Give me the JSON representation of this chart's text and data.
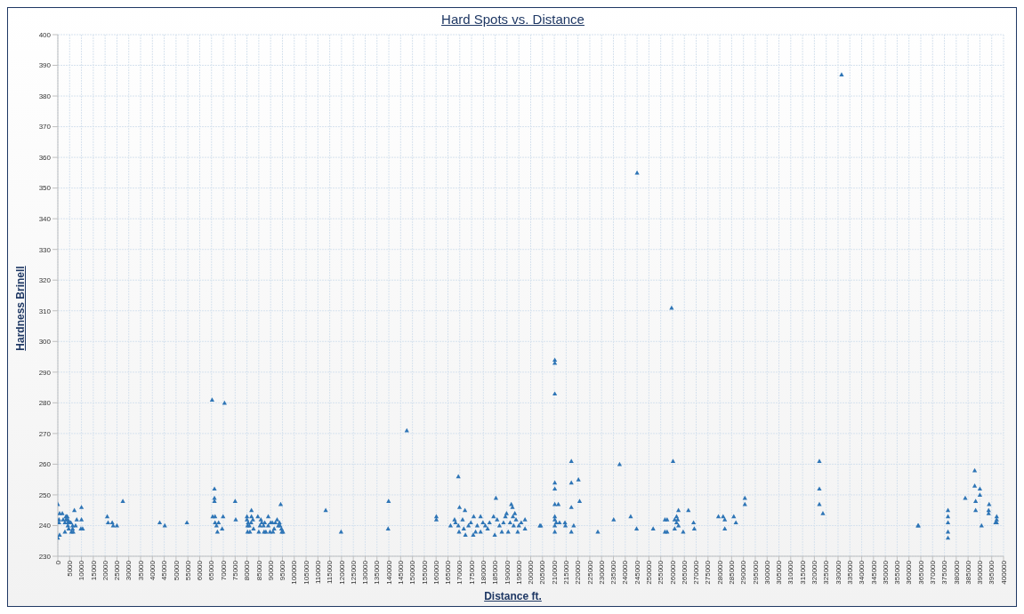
{
  "chart_data": {
    "type": "scatter",
    "title": "Hard Spots vs. Distance",
    "xlabel": "Distance ft.",
    "ylabel": "Hardness Brinell",
    "marker": "triangle",
    "grid": true,
    "legend": false,
    "xlim": [
      0,
      400000
    ],
    "ylim": [
      230,
      400
    ],
    "xticks": [
      0,
      5000,
      10000,
      15000,
      20000,
      25000,
      30000,
      35000,
      40000,
      45000,
      50000,
      55000,
      60000,
      65000,
      70000,
      75000,
      80000,
      85000,
      90000,
      95000,
      100000,
      105000,
      110000,
      115000,
      120000,
      125000,
      130000,
      135000,
      140000,
      145000,
      150000,
      155000,
      160000,
      165000,
      170000,
      175000,
      180000,
      185000,
      190000,
      195000,
      200000,
      205000,
      210000,
      215000,
      220000,
      225000,
      230000,
      235000,
      240000,
      245000,
      250000,
      255000,
      260000,
      265000,
      270000,
      275000,
      280000,
      285000,
      290000,
      295000,
      300000,
      305000,
      310000,
      315000,
      320000,
      325000,
      330000,
      335000,
      340000,
      345000,
      350000,
      355000,
      360000,
      365000,
      370000,
      375000,
      380000,
      385000,
      390000,
      395000,
      400000
    ],
    "yticks": [
      230,
      240,
      250,
      260,
      270,
      280,
      290,
      300,
      310,
      320,
      330,
      340,
      350,
      360,
      370,
      380,
      390,
      400
    ],
    "series": [
      {
        "color": "#2e75b6",
        "x": [
          0,
          500,
          500,
          0,
          750,
          750,
          1900,
          2250,
          3000,
          3000,
          3400,
          3750,
          4000,
          3500,
          4250,
          4250,
          4600,
          5000,
          5500,
          4250,
          4600,
          5750,
          6250,
          6500,
          6250,
          7000,
          7500,
          8000,
          10000,
          10000,
          9750,
          10500,
          20900,
          21250,
          23000,
          23400,
          25000,
          27500,
          43100,
          45250,
          54600,
          65250,
          70500,
          65500,
          66500,
          66250,
          66250,
          66250,
          66500,
          67100,
          67500,
          68000,
          69900,
          69500,
          75000,
          75250,
          80000,
          80000,
          80500,
          80250,
          80250,
          81250,
          81000,
          81900,
          81900,
          81750,
          82500,
          82750,
          84600,
          85000,
          85500,
          85900,
          86250,
          87000,
          87500,
          87250,
          88000,
          89000,
          89000,
          89750,
          90000,
          90750,
          91000,
          91500,
          92000,
          92750,
          93250,
          93750,
          94250,
          94600,
          94750,
          95250,
          94000,
          113300,
          119800,
          139900,
          139700,
          147600,
          160100,
          160100,
          166100,
          167800,
          168200,
          169400,
          169900,
          172200,
          169400,
          169700,
          171200,
          171700,
          172400,
          173700,
          174700,
          175900,
          175700,
          176700,
          177400,
          178800,
          178800,
          179800,
          180800,
          181800,
          182600,
          184300,
          184800,
          185300,
          185800,
          186800,
          187800,
          188500,
          189300,
          189800,
          190500,
          191300,
          191800,
          192300,
          192500,
          192800,
          193300,
          193800,
          194500,
          195000,
          196000,
          197600,
          197600,
          203900,
          204300,
          210200,
          210200,
          210200,
          210200,
          210200,
          210200,
          211700,
          210200,
          210200,
          210800,
          212200,
          210200,
          210200,
          214500,
          214700,
          217200,
          217200,
          217200,
          217200,
          218200,
          220200,
          220700,
          228400,
          235100,
          237600,
          242300,
          245000,
          244800,
          251800,
          256800,
          257700,
          256800,
          257700,
          259600,
          260200,
          260900,
          260900,
          261700,
          261700,
          262200,
          262500,
          262500,
          264500,
          266700,
          268900,
          269200,
          279400,
          281400,
          282100,
          282100,
          285900,
          286800,
          290600,
          290600,
          322100,
          322100,
          322100,
          323600,
          331500,
          363800,
          364000,
          376500,
          376500,
          376500,
          376500,
          376500,
          383800,
          387800,
          387800,
          388200,
          388200,
          390000,
          390000,
          390700,
          393900,
          393700,
          393700,
          397100,
          397100,
          397100,
          396600
        ],
        "values": [
          247,
          242,
          241,
          236,
          237,
          244,
          244,
          242,
          238,
          241,
          243,
          243,
          243,
          242,
          242,
          241,
          241,
          241,
          241,
          240,
          239,
          238,
          239,
          238,
          240,
          245,
          240,
          242,
          246,
          242,
          239,
          239,
          243,
          241,
          241,
          240,
          240,
          248,
          241,
          240,
          241,
          281,
          280,
          243,
          243,
          252,
          249,
          248,
          241,
          240,
          238,
          241,
          243,
          239,
          248,
          242,
          243,
          242,
          241,
          240,
          238,
          238,
          240,
          245,
          243,
          241,
          242,
          239,
          243,
          238,
          240,
          242,
          241,
          240,
          241,
          238,
          238,
          243,
          240,
          238,
          241,
          241,
          238,
          239,
          241,
          242,
          240,
          241,
          247,
          239,
          238,
          238,
          240,
          245,
          238,
          248,
          239,
          271,
          243,
          242,
          240,
          242,
          241,
          256,
          246,
          245,
          240,
          238,
          242,
          239,
          237,
          240,
          241,
          243,
          237,
          238,
          240,
          243,
          238,
          241,
          240,
          239,
          241,
          243,
          237,
          249,
          242,
          240,
          238,
          241,
          243,
          244,
          238,
          241,
          247,
          246,
          243,
          240,
          244,
          242,
          238,
          240,
          241,
          242,
          239,
          240,
          240,
          294,
          293,
          283,
          254,
          252,
          247,
          247,
          243,
          242,
          241,
          241,
          240,
          238,
          241,
          240,
          261,
          254,
          246,
          238,
          240,
          255,
          248,
          238,
          242,
          260,
          243,
          355,
          239,
          239,
          242,
          242,
          238,
          238,
          311,
          261,
          242,
          239,
          243,
          241,
          242,
          245,
          240,
          238,
          245,
          241,
          239,
          243,
          243,
          242,
          239,
          243,
          241,
          249,
          247,
          261,
          252,
          247,
          244,
          387,
          240,
          240,
          245,
          243,
          241,
          238,
          236,
          249,
          258,
          253,
          248,
          245,
          252,
          250,
          240,
          247,
          245,
          244,
          243,
          242,
          241,
          241
        ]
      }
    ]
  }
}
